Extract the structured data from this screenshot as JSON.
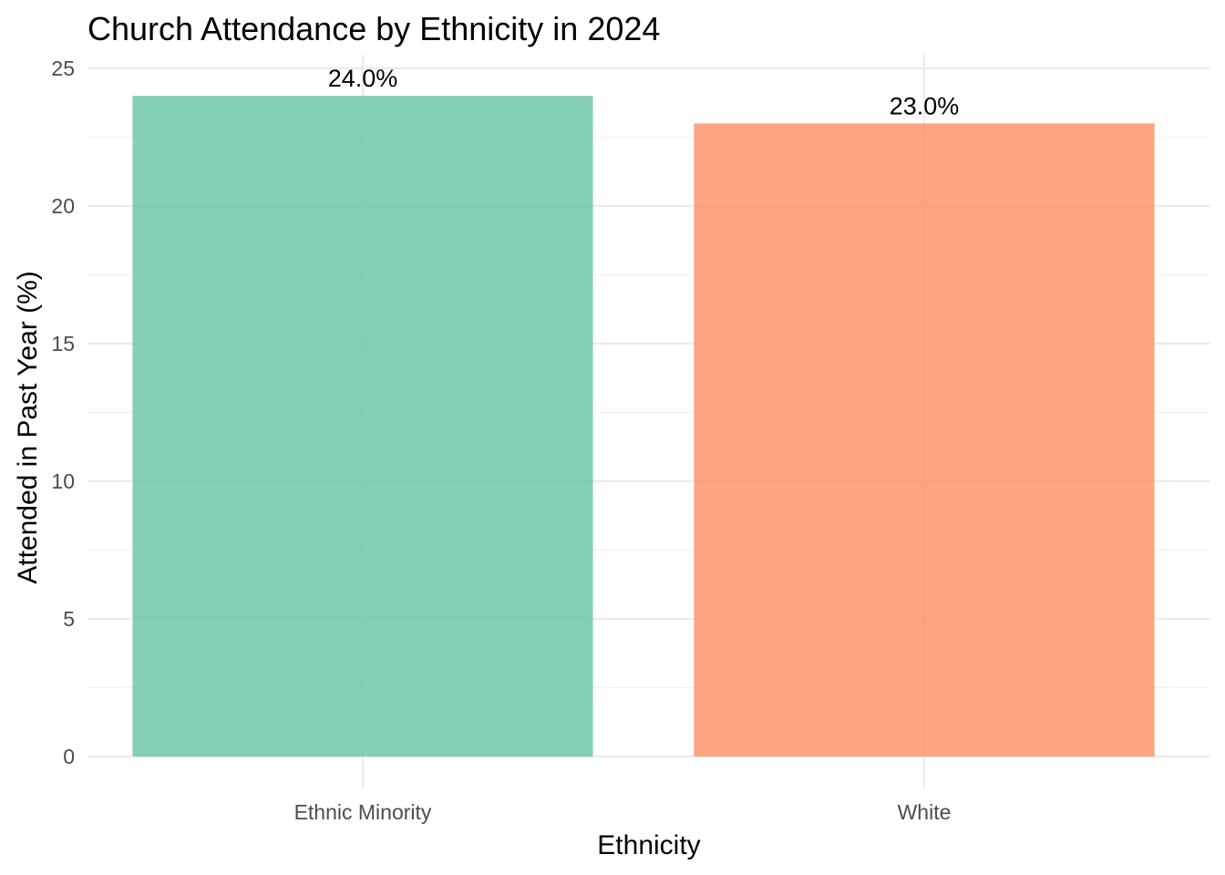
{
  "chart_data": {
    "type": "bar",
    "title": "Church Attendance by Ethnicity in 2024",
    "xlabel": "Ethnicity",
    "ylabel": "Attended in Past Year (%)",
    "categories": [
      "Ethnic Minority",
      "White"
    ],
    "values": [
      24.0,
      23.0
    ],
    "data_labels": [
      "24.0%",
      "23.0%"
    ],
    "colors": [
      "#66c2a5",
      "#fc8d62"
    ],
    "ylim": [
      0,
      25
    ],
    "yticks": [
      0,
      5,
      10,
      15,
      20,
      25
    ],
    "grid": true,
    "legend": "none"
  }
}
